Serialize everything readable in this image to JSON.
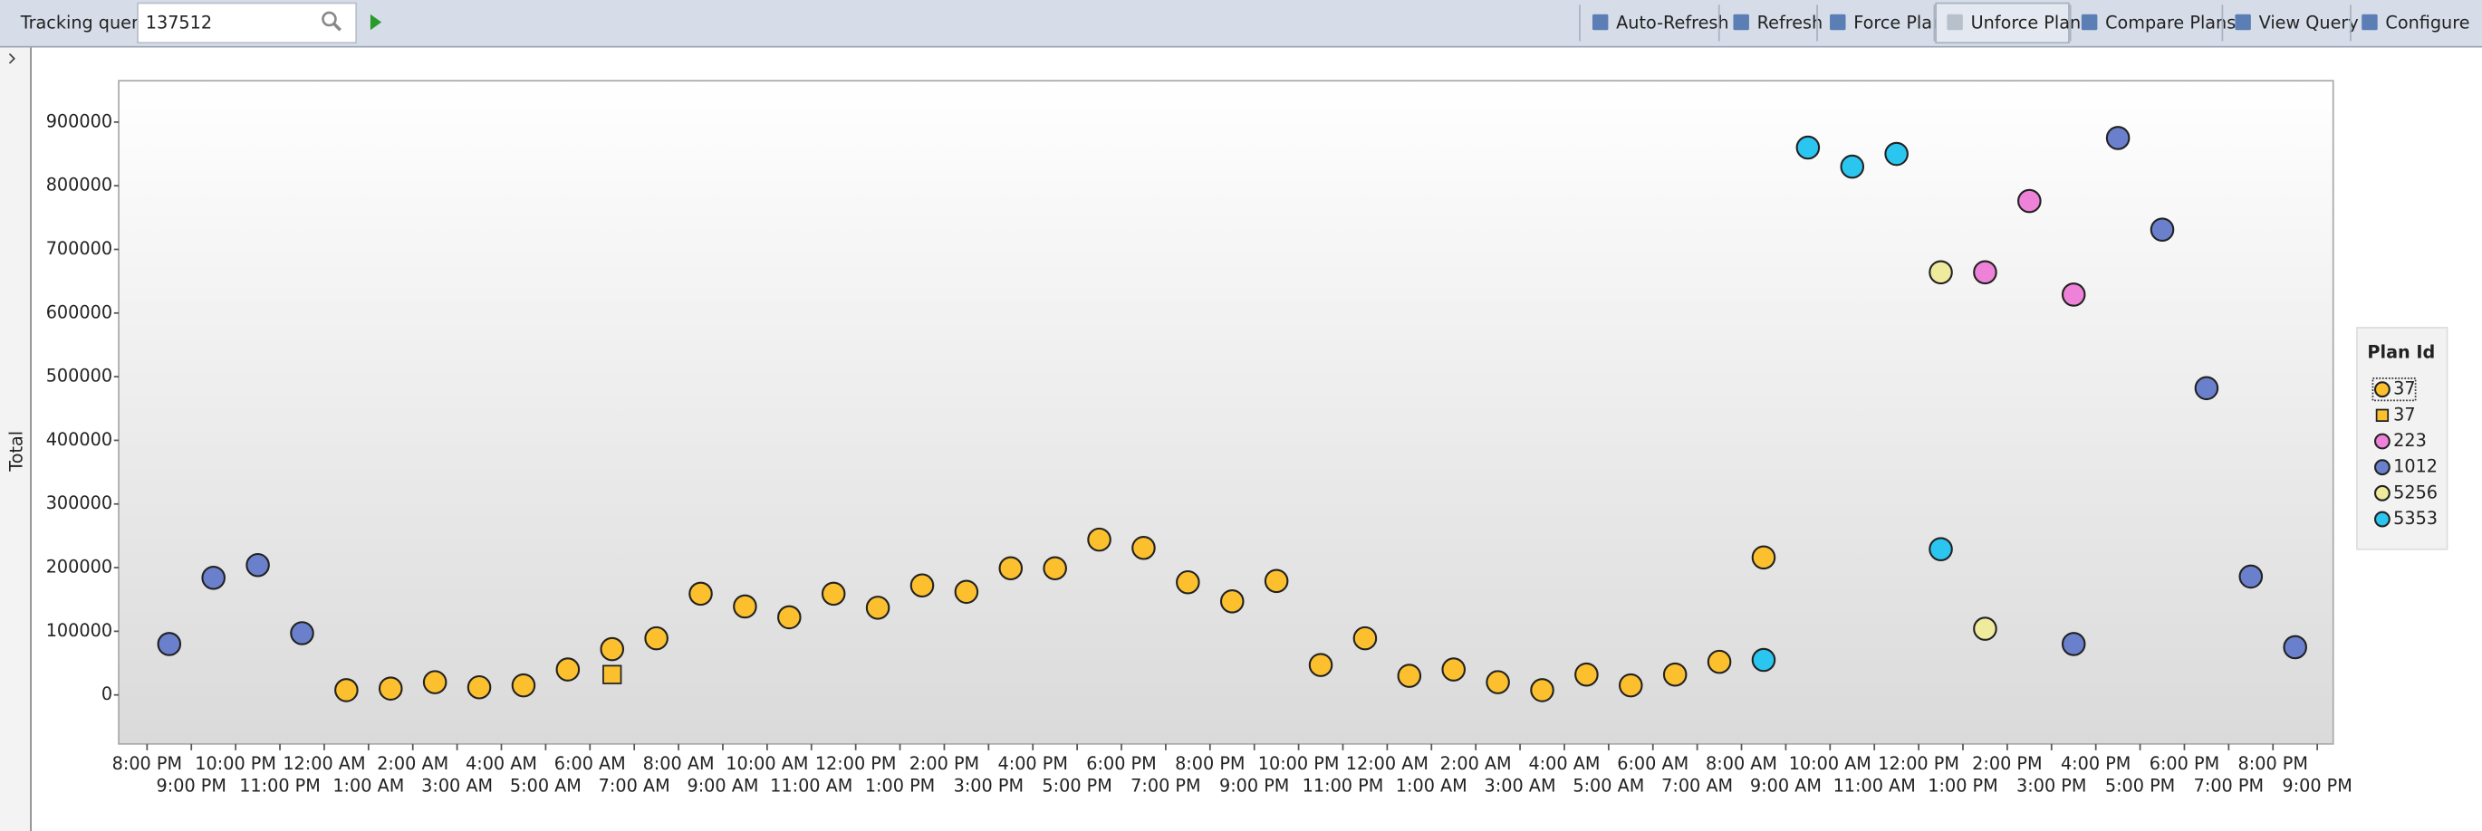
{
  "toolbar": {
    "label": "Tracking query",
    "query": "137512",
    "buttons": [
      {
        "text": "Auto-Refresh",
        "enabled": true
      },
      {
        "text": "Refresh",
        "enabled": true
      },
      {
        "text": "Force Plan",
        "enabled": true
      },
      {
        "text": "Unforce Plan",
        "enabled": false
      },
      {
        "text": "Compare Plans",
        "enabled": true
      },
      {
        "text": "View Query",
        "enabled": true
      },
      {
        "text": "Configure",
        "enabled": true
      }
    ]
  },
  "chart_data": {
    "type": "scatter",
    "y_label": "Total",
    "legend_title": "Plan Id",
    "legend_position": "right",
    "grid": false,
    "xlim": [
      -0.64,
      49.36
    ],
    "ylim": [
      -77000,
      965000
    ],
    "yticks": [
      0,
      100000,
      200000,
      300000,
      400000,
      500000,
      600000,
      700000,
      800000,
      900000
    ],
    "xticks": [
      {
        "value": 0,
        "label": "8:00 PM"
      },
      {
        "value": 1,
        "label": "9:00 PM"
      },
      {
        "value": 2,
        "label": "10:00 PM"
      },
      {
        "value": 3,
        "label": "11:00 PM"
      },
      {
        "value": 4,
        "label": "12:00 AM"
      },
      {
        "value": 5,
        "label": "1:00 AM"
      },
      {
        "value": 6,
        "label": "2:00 AM"
      },
      {
        "value": 7,
        "label": "3:00 AM"
      },
      {
        "value": 8,
        "label": "4:00 AM"
      },
      {
        "value": 9,
        "label": "5:00 AM"
      },
      {
        "value": 10,
        "label": "6:00 AM"
      },
      {
        "value": 11,
        "label": "7:00 AM"
      },
      {
        "value": 12,
        "label": "8:00 AM"
      },
      {
        "value": 13,
        "label": "9:00 AM"
      },
      {
        "value": 14,
        "label": "10:00 AM"
      },
      {
        "value": 15,
        "label": "11:00 AM"
      },
      {
        "value": 16,
        "label": "12:00 PM"
      },
      {
        "value": 17,
        "label": "1:00 PM"
      },
      {
        "value": 18,
        "label": "2:00 PM"
      },
      {
        "value": 19,
        "label": "3:00 PM"
      },
      {
        "value": 20,
        "label": "4:00 PM"
      },
      {
        "value": 21,
        "label": "5:00 PM"
      },
      {
        "value": 22,
        "label": "6:00 PM"
      },
      {
        "value": 23,
        "label": "7:00 PM"
      },
      {
        "value": 24,
        "label": "8:00 PM"
      },
      {
        "value": 25,
        "label": "9:00 PM"
      },
      {
        "value": 26,
        "label": "10:00 PM"
      },
      {
        "value": 27,
        "label": "11:00 PM"
      },
      {
        "value": 28,
        "label": "12:00 AM"
      },
      {
        "value": 29,
        "label": "1:00 AM"
      },
      {
        "value": 30,
        "label": "2:00 AM"
      },
      {
        "value": 31,
        "label": "3:00 AM"
      },
      {
        "value": 32,
        "label": "4:00 AM"
      },
      {
        "value": 33,
        "label": "5:00 AM"
      },
      {
        "value": 34,
        "label": "6:00 AM"
      },
      {
        "value": 35,
        "label": "7:00 AM"
      },
      {
        "value": 36,
        "label": "8:00 AM"
      },
      {
        "value": 37,
        "label": "9:00 AM"
      },
      {
        "value": 38,
        "label": "10:00 AM"
      },
      {
        "value": 39,
        "label": "11:00 AM"
      },
      {
        "value": 40,
        "label": "12:00 PM"
      },
      {
        "value": 41,
        "label": "1:00 PM"
      },
      {
        "value": 42,
        "label": "2:00 PM"
      },
      {
        "value": 43,
        "label": "3:00 PM"
      },
      {
        "value": 44,
        "label": "4:00 PM"
      },
      {
        "value": 45,
        "label": "5:00 PM"
      },
      {
        "value": 46,
        "label": "6:00 PM"
      },
      {
        "value": 47,
        "label": "7:00 PM"
      },
      {
        "value": 48,
        "label": "8:00 PM"
      },
      {
        "value": 49,
        "label": "9:00 PM"
      }
    ],
    "series": [
      {
        "name": "37",
        "marker": "circle",
        "color": "#fcc02e",
        "x": [
          4.5,
          5.5,
          6.5,
          7.5,
          8.5,
          9.5,
          10.5,
          11.5,
          12.5,
          13.5,
          14.5,
          15.5,
          16.5,
          17.5,
          18.5,
          19.5,
          20.5,
          21.5,
          22.5,
          23.5,
          24.5,
          25.5,
          26.5,
          27.5,
          28.5,
          29.5,
          30.5,
          31.5,
          32.5,
          33.5,
          34.5,
          35.5,
          36.5
        ],
        "values": [
          7500,
          10000,
          20000,
          12000,
          15000,
          40000,
          72000,
          89000,
          159000,
          139000,
          122000,
          159000,
          137000,
          172000,
          162000,
          199000,
          199000,
          244000,
          231000,
          177000,
          147000,
          179000,
          47000,
          89000,
          30000,
          40000,
          20000,
          7500,
          32000,
          15000,
          32000,
          52000,
          216000
        ]
      },
      {
        "name": "37",
        "marker": "square",
        "color": "#fcc02e",
        "x": [
          10.5
        ],
        "values": [
          32000
        ]
      },
      {
        "name": "223",
        "marker": "circle",
        "color": "#ee82d8",
        "x": [
          41.5,
          42.5,
          43.5
        ],
        "values": [
          664000,
          776000,
          629000
        ]
      },
      {
        "name": "1012",
        "marker": "circle",
        "color": "#6a80cc",
        "x": [
          0.5,
          1.5,
          2.5,
          3.5,
          43.5,
          44.5,
          45.5,
          46.5,
          47.5,
          48.5
        ],
        "values": [
          80000,
          184000,
          204000,
          97000,
          80000,
          875000,
          731000,
          482000,
          186000,
          75000
        ]
      },
      {
        "name": "5256",
        "marker": "circle",
        "color": "#eeeb9c",
        "x": [
          40.5,
          41.5
        ],
        "values": [
          664000,
          104000
        ]
      },
      {
        "name": "5353",
        "marker": "circle",
        "color": "#2ac6f0",
        "x": [
          36.5,
          37.5,
          38.5,
          39.5,
          40.5
        ],
        "values": [
          55000,
          860000,
          830000,
          850000,
          229000
        ]
      }
    ]
  }
}
